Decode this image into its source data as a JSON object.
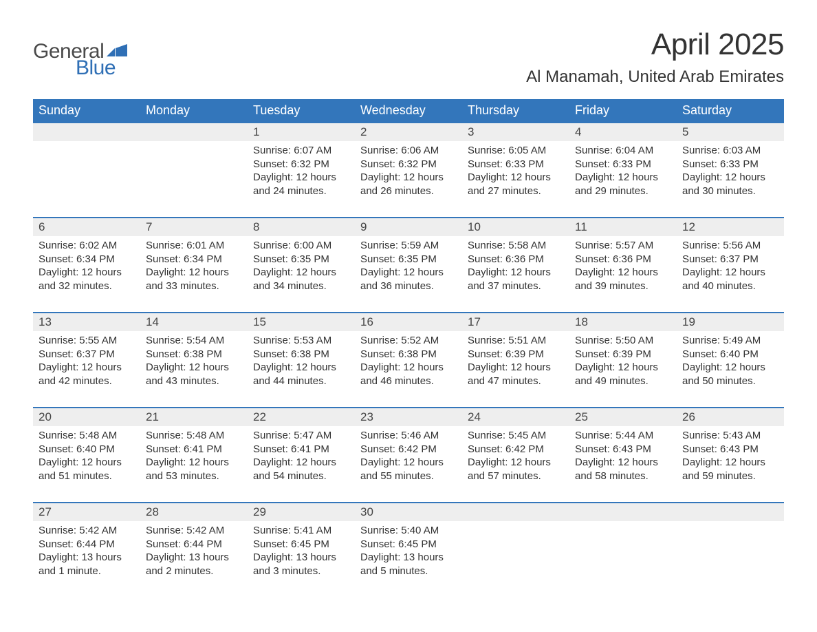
{
  "logo": {
    "text_general": "General",
    "text_blue": "Blue",
    "flag_color": "#2f6fb5",
    "general_color": "#4a4a4a",
    "blue_color": "#2f6fb5"
  },
  "title": {
    "month": "April 2025",
    "location": "Al Manamah, United Arab Emirates",
    "month_fontsize": 44,
    "location_fontsize": 24,
    "text_color": "#333333"
  },
  "calendar": {
    "header_bg": "#3376bb",
    "header_text_color": "#ffffff",
    "daynum_bg": "#eeeeee",
    "row_border_color": "#3376bb",
    "body_text_color": "#333333",
    "background_color": "#ffffff",
    "header_fontsize": 18,
    "daynum_fontsize": 17,
    "body_fontsize": 15,
    "columns": [
      "Sunday",
      "Monday",
      "Tuesday",
      "Wednesday",
      "Thursday",
      "Friday",
      "Saturday"
    ],
    "weeks": [
      [
        {
          "day": "",
          "sunrise": "",
          "sunset": "",
          "daylight": ""
        },
        {
          "day": "",
          "sunrise": "",
          "sunset": "",
          "daylight": ""
        },
        {
          "day": "1",
          "sunrise": "Sunrise: 6:07 AM",
          "sunset": "Sunset: 6:32 PM",
          "daylight": "Daylight: 12 hours and 24 minutes."
        },
        {
          "day": "2",
          "sunrise": "Sunrise: 6:06 AM",
          "sunset": "Sunset: 6:32 PM",
          "daylight": "Daylight: 12 hours and 26 minutes."
        },
        {
          "day": "3",
          "sunrise": "Sunrise: 6:05 AM",
          "sunset": "Sunset: 6:33 PM",
          "daylight": "Daylight: 12 hours and 27 minutes."
        },
        {
          "day": "4",
          "sunrise": "Sunrise: 6:04 AM",
          "sunset": "Sunset: 6:33 PM",
          "daylight": "Daylight: 12 hours and 29 minutes."
        },
        {
          "day": "5",
          "sunrise": "Sunrise: 6:03 AM",
          "sunset": "Sunset: 6:33 PM",
          "daylight": "Daylight: 12 hours and 30 minutes."
        }
      ],
      [
        {
          "day": "6",
          "sunrise": "Sunrise: 6:02 AM",
          "sunset": "Sunset: 6:34 PM",
          "daylight": "Daylight: 12 hours and 32 minutes."
        },
        {
          "day": "7",
          "sunrise": "Sunrise: 6:01 AM",
          "sunset": "Sunset: 6:34 PM",
          "daylight": "Daylight: 12 hours and 33 minutes."
        },
        {
          "day": "8",
          "sunrise": "Sunrise: 6:00 AM",
          "sunset": "Sunset: 6:35 PM",
          "daylight": "Daylight: 12 hours and 34 minutes."
        },
        {
          "day": "9",
          "sunrise": "Sunrise: 5:59 AM",
          "sunset": "Sunset: 6:35 PM",
          "daylight": "Daylight: 12 hours and 36 minutes."
        },
        {
          "day": "10",
          "sunrise": "Sunrise: 5:58 AM",
          "sunset": "Sunset: 6:36 PM",
          "daylight": "Daylight: 12 hours and 37 minutes."
        },
        {
          "day": "11",
          "sunrise": "Sunrise: 5:57 AM",
          "sunset": "Sunset: 6:36 PM",
          "daylight": "Daylight: 12 hours and 39 minutes."
        },
        {
          "day": "12",
          "sunrise": "Sunrise: 5:56 AM",
          "sunset": "Sunset: 6:37 PM",
          "daylight": "Daylight: 12 hours and 40 minutes."
        }
      ],
      [
        {
          "day": "13",
          "sunrise": "Sunrise: 5:55 AM",
          "sunset": "Sunset: 6:37 PM",
          "daylight": "Daylight: 12 hours and 42 minutes."
        },
        {
          "day": "14",
          "sunrise": "Sunrise: 5:54 AM",
          "sunset": "Sunset: 6:38 PM",
          "daylight": "Daylight: 12 hours and 43 minutes."
        },
        {
          "day": "15",
          "sunrise": "Sunrise: 5:53 AM",
          "sunset": "Sunset: 6:38 PM",
          "daylight": "Daylight: 12 hours and 44 minutes."
        },
        {
          "day": "16",
          "sunrise": "Sunrise: 5:52 AM",
          "sunset": "Sunset: 6:38 PM",
          "daylight": "Daylight: 12 hours and 46 minutes."
        },
        {
          "day": "17",
          "sunrise": "Sunrise: 5:51 AM",
          "sunset": "Sunset: 6:39 PM",
          "daylight": "Daylight: 12 hours and 47 minutes."
        },
        {
          "day": "18",
          "sunrise": "Sunrise: 5:50 AM",
          "sunset": "Sunset: 6:39 PM",
          "daylight": "Daylight: 12 hours and 49 minutes."
        },
        {
          "day": "19",
          "sunrise": "Sunrise: 5:49 AM",
          "sunset": "Sunset: 6:40 PM",
          "daylight": "Daylight: 12 hours and 50 minutes."
        }
      ],
      [
        {
          "day": "20",
          "sunrise": "Sunrise: 5:48 AM",
          "sunset": "Sunset: 6:40 PM",
          "daylight": "Daylight: 12 hours and 51 minutes."
        },
        {
          "day": "21",
          "sunrise": "Sunrise: 5:48 AM",
          "sunset": "Sunset: 6:41 PM",
          "daylight": "Daylight: 12 hours and 53 minutes."
        },
        {
          "day": "22",
          "sunrise": "Sunrise: 5:47 AM",
          "sunset": "Sunset: 6:41 PM",
          "daylight": "Daylight: 12 hours and 54 minutes."
        },
        {
          "day": "23",
          "sunrise": "Sunrise: 5:46 AM",
          "sunset": "Sunset: 6:42 PM",
          "daylight": "Daylight: 12 hours and 55 minutes."
        },
        {
          "day": "24",
          "sunrise": "Sunrise: 5:45 AM",
          "sunset": "Sunset: 6:42 PM",
          "daylight": "Daylight: 12 hours and 57 minutes."
        },
        {
          "day": "25",
          "sunrise": "Sunrise: 5:44 AM",
          "sunset": "Sunset: 6:43 PM",
          "daylight": "Daylight: 12 hours and 58 minutes."
        },
        {
          "day": "26",
          "sunrise": "Sunrise: 5:43 AM",
          "sunset": "Sunset: 6:43 PM",
          "daylight": "Daylight: 12 hours and 59 minutes."
        }
      ],
      [
        {
          "day": "27",
          "sunrise": "Sunrise: 5:42 AM",
          "sunset": "Sunset: 6:44 PM",
          "daylight": "Daylight: 13 hours and 1 minute."
        },
        {
          "day": "28",
          "sunrise": "Sunrise: 5:42 AM",
          "sunset": "Sunset: 6:44 PM",
          "daylight": "Daylight: 13 hours and 2 minutes."
        },
        {
          "day": "29",
          "sunrise": "Sunrise: 5:41 AM",
          "sunset": "Sunset: 6:45 PM",
          "daylight": "Daylight: 13 hours and 3 minutes."
        },
        {
          "day": "30",
          "sunrise": "Sunrise: 5:40 AM",
          "sunset": "Sunset: 6:45 PM",
          "daylight": "Daylight: 13 hours and 5 minutes."
        },
        {
          "day": "",
          "sunrise": "",
          "sunset": "",
          "daylight": ""
        },
        {
          "day": "",
          "sunrise": "",
          "sunset": "",
          "daylight": ""
        },
        {
          "day": "",
          "sunrise": "",
          "sunset": "",
          "daylight": ""
        }
      ]
    ]
  }
}
